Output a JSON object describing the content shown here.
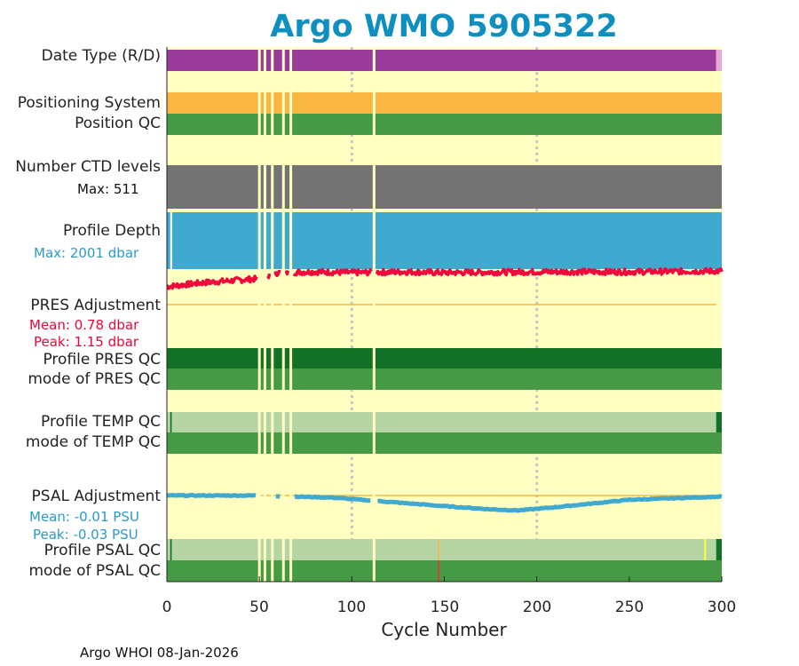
{
  "chart_data": {
    "type": "float-diagnostic-strip-chart",
    "title": "Argo WMO 5905322",
    "xlabel": "Cycle Number",
    "xlim": [
      0,
      300
    ],
    "xticks": [
      "0",
      "50",
      "100",
      "150",
      "200",
      "250",
      "300"
    ],
    "gap_cycles": [
      50,
      53,
      57,
      63,
      67,
      112
    ],
    "rows": {
      "date_type": {
        "label": "Date Type (R/D)",
        "color_R": "#993b9b",
        "color_D": "#e9a9d9"
      },
      "positioning": {
        "label": "Positioning System",
        "color": "#fbb541"
      },
      "position_qc": {
        "label": "Position QC",
        "color": "#469a46"
      },
      "ctd_levels": {
        "label": "Number CTD levels",
        "max_text": "Max: 511",
        "max": 511,
        "color": "#737373"
      },
      "profile_depth": {
        "label": "Profile Depth",
        "max_text": "Max: 2001 dbar",
        "max_dbar": 2001,
        "color": "#40a9cf"
      },
      "pres_adjustment": {
        "label": "PRES Adjustment",
        "mean_text": "Mean: 0.78 dbar",
        "peak_text": "Peak: 1.15 dbar",
        "mean": 0.78,
        "peak": 1.15,
        "color": "#f0083c",
        "anchors": [
          [
            0,
            0.45
          ],
          [
            20,
            0.55
          ],
          [
            50,
            0.65
          ],
          [
            60,
            0.8
          ],
          [
            80,
            0.82
          ],
          [
            100,
            0.8
          ],
          [
            130,
            0.82
          ],
          [
            150,
            0.8
          ],
          [
            200,
            0.82
          ],
          [
            250,
            0.82
          ],
          [
            300,
            0.84
          ]
        ]
      },
      "profile_pres_qc": {
        "label": "Profile PRES QC",
        "color": "#127126"
      },
      "mode_pres_qc": {
        "label": "mode of PRES QC",
        "color": "#469a46"
      },
      "profile_temp_qc": {
        "label": "Profile TEMP QC",
        "color": "#b5d6a4",
        "edge_color": "#127126"
      },
      "mode_temp_qc": {
        "label": "mode of TEMP QC",
        "color": "#469a46"
      },
      "psal_adjustment": {
        "label": "PSAL Adjustment",
        "mean_text": "Mean: -0.01 PSU",
        "peak_text": "Peak: -0.03 PSU",
        "mean": -0.01,
        "peak": -0.03,
        "color": "#40a9cf",
        "anchors": [
          [
            0,
            0.0
          ],
          [
            50,
            0.0
          ],
          [
            90,
            -0.002
          ],
          [
            120,
            -0.006
          ],
          [
            150,
            -0.01
          ],
          [
            175,
            -0.013
          ],
          [
            190,
            -0.014
          ],
          [
            210,
            -0.011
          ],
          [
            250,
            -0.004
          ],
          [
            300,
            -0.001
          ]
        ]
      },
      "profile_psal_qc": {
        "label": "Profile PSAL QC",
        "color": "#b5d6a4",
        "flag_cycle": 147,
        "flag_color": "#fbb541",
        "yellow_cycle": 291
      },
      "mode_psal_qc": {
        "label": "mode of PSAL QC",
        "color": "#469a46",
        "flag_color": "#e8352f"
      }
    },
    "background": "#ffffc2"
  },
  "footer": "Argo WHOI 08-Jan-2026"
}
